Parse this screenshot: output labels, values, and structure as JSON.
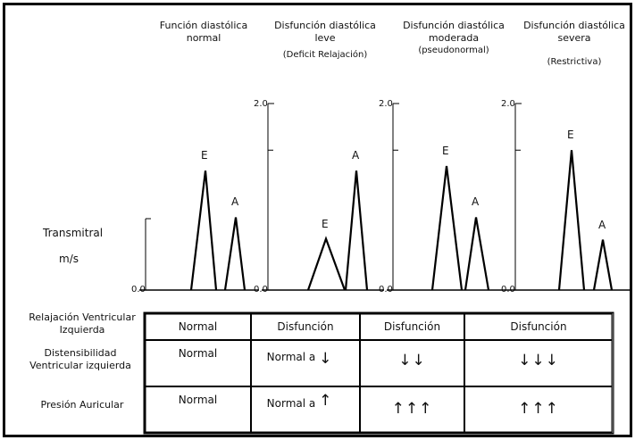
{
  "headers": [
    {
      "line1": "Función diastólica",
      "line2": "normal",
      "line3": ""
    },
    {
      "line1": "Disfunción diastólica",
      "line2": "leve",
      "line3": "(Deficit Relajación)"
    },
    {
      "line1": "Disfunción diastólica",
      "line2": "moderada",
      "line3": "(pseudonormal)"
    },
    {
      "line1": "Disfunción diastólica",
      "line2": "severa",
      "line3": "(Restrictiva)"
    }
  ],
  "yaxis": {
    "max_label": "2.0",
    "min_label": "0.0"
  },
  "left_label": {
    "line1": "Transmitral",
    "line2": "m/s"
  },
  "peak_labels": {
    "e": "E",
    "a": "A"
  },
  "chart_data": {
    "type": "line",
    "ylim": [
      0,
      2.0
    ],
    "series": [
      {
        "name": "Función diastólica normal",
        "E": 1.28,
        "A": 0.78
      },
      {
        "name": "Disfunción diastólica leve",
        "E": 0.55,
        "A": 1.28
      },
      {
        "name": "Disfunción diastólica moderada",
        "E": 1.33,
        "A": 0.78
      },
      {
        "name": "Disfunción diastólica severa",
        "E": 1.5,
        "A": 0.54
      }
    ]
  },
  "table": {
    "row_labels": [
      {
        "line1": "Relajación Ventricular",
        "line2": "Izquierda"
      },
      {
        "line1": "Distensibilidad",
        "line2": "Ventricular izquierda"
      },
      {
        "line1": "Presión Auricular",
        "line2": ""
      }
    ],
    "relaxation": [
      "Normal",
      "Disfunción",
      "Disfunción",
      "Disfunción"
    ],
    "distensibility": {
      "col1": "Normal",
      "col2_text": "Normal a",
      "col2_arrow": "↓",
      "col3": "↓↓",
      "col4": "↓↓↓"
    },
    "pressure": {
      "col1": "Normal",
      "col2_text": "Normal a",
      "col2_arrow": "↑",
      "col3": "↑↑↑",
      "col4": "↑↑↑"
    }
  }
}
